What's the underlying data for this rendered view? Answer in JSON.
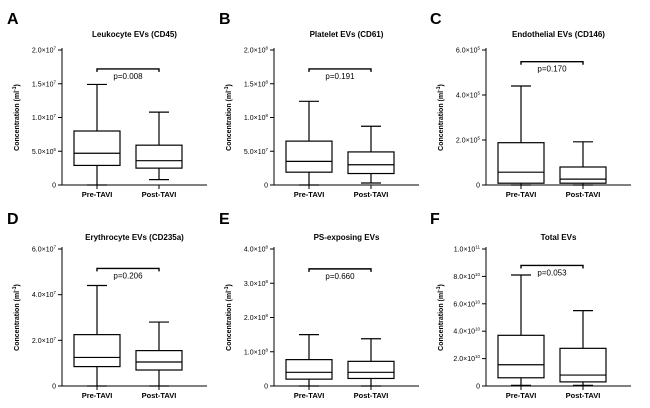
{
  "chart_data": [
    {
      "letter": "A",
      "type": "box",
      "title": "Leukocyte EVs (CD45)",
      "ylabel": "Concentration (ml",
      "ylabel_sup": "-1",
      "ylabel_end": ")",
      "ylim": [
        0,
        20000000
      ],
      "yticks": [
        {
          "value": 0,
          "mant": "0",
          "exp": ""
        },
        {
          "value": 5000000,
          "mant": "5.0×10",
          "exp": "6"
        },
        {
          "value": 10000000,
          "mant": "1.0×10",
          "exp": "7"
        },
        {
          "value": 15000000,
          "mant": "1.5×10",
          "exp": "7"
        },
        {
          "value": 20000000,
          "mant": "2.0×10",
          "exp": "7"
        }
      ],
      "categories": [
        "Pre-TAVI",
        "Post-TAVI"
      ],
      "boxes": [
        {
          "min": 0,
          "q1": 2900000,
          "median": 4700000,
          "q3": 8000000,
          "max": 14900000
        },
        {
          "min": 800000,
          "q1": 2500000,
          "median": 3600000,
          "q3": 5900000,
          "max": 10800000
        }
      ],
      "comparison": {
        "pvalue": "p=0.008",
        "level": 17200000
      }
    },
    {
      "letter": "B",
      "type": "box",
      "title": "Platelet EVs (CD61)",
      "ylabel": "Concentration (ml",
      "ylabel_sup": "-1",
      "ylabel_end": ")",
      "ylim": [
        0,
        200000000
      ],
      "yticks": [
        {
          "value": 0,
          "mant": "0",
          "exp": ""
        },
        {
          "value": 50000000,
          "mant": "5.0×10",
          "exp": "7"
        },
        {
          "value": 100000000,
          "mant": "1.0×10",
          "exp": "8"
        },
        {
          "value": 150000000,
          "mant": "1.5×10",
          "exp": "8"
        },
        {
          "value": 200000000,
          "mant": "2.0×10",
          "exp": "8"
        }
      ],
      "categories": [
        "Pre-TAVI",
        "Post-TAVI"
      ],
      "boxes": [
        {
          "min": 0,
          "q1": 19000000,
          "median": 35000000,
          "q3": 65000000,
          "max": 124000000
        },
        {
          "min": 3000000,
          "q1": 17000000,
          "median": 30000000,
          "q3": 49000000,
          "max": 87000000
        }
      ],
      "comparison": {
        "pvalue": "p=0.191",
        "level": 172000000
      }
    },
    {
      "letter": "C",
      "type": "box",
      "title": "Endothelial EVs (CD146)",
      "ylabel": "Concentration (ml",
      "ylabel_sup": "-1",
      "ylabel_end": ")",
      "ylim": [
        0,
        600000
      ],
      "yticks": [
        {
          "value": 0,
          "mant": "0",
          "exp": ""
        },
        {
          "value": 200000,
          "mant": "2.0×10",
          "exp": "5"
        },
        {
          "value": 400000,
          "mant": "4.0×10",
          "exp": "5"
        },
        {
          "value": 600000,
          "mant": "6.0×10",
          "exp": "5"
        }
      ],
      "categories": [
        "Pre-TAVI",
        "Post-TAVI"
      ],
      "boxes": [
        {
          "min": 0,
          "q1": 8000,
          "median": 57000,
          "q3": 188000,
          "max": 440000
        },
        {
          "min": 0,
          "q1": 8000,
          "median": 26000,
          "q3": 80000,
          "max": 192000
        }
      ],
      "comparison": {
        "pvalue": "p=0.170",
        "level": 548000
      }
    },
    {
      "letter": "D",
      "type": "box",
      "title": "Erythrocyte EVs (CD235a)",
      "ylabel": "Concentration (ml",
      "ylabel_sup": "-1",
      "ylabel_end": ")",
      "ylim": [
        0,
        60000000
      ],
      "yticks": [
        {
          "value": 0,
          "mant": "0",
          "exp": ""
        },
        {
          "value": 20000000,
          "mant": "2.0×10",
          "exp": "7"
        },
        {
          "value": 40000000,
          "mant": "4.0×10",
          "exp": "7"
        },
        {
          "value": 60000000,
          "mant": "6.0×10",
          "exp": "7"
        }
      ],
      "categories": [
        "Pre-TAVI",
        "Post-TAVI"
      ],
      "boxes": [
        {
          "min": 0,
          "q1": 8500000,
          "median": 12500000,
          "q3": 22500000,
          "max": 44000000
        },
        {
          "min": 0,
          "q1": 7000000,
          "median": 10500000,
          "q3": 15500000,
          "max": 28000000
        }
      ],
      "comparison": {
        "pvalue": "p=0.206",
        "level": 51500000
      }
    },
    {
      "letter": "E",
      "type": "box",
      "title": "PS-exposing EVs",
      "ylabel": "Concentration (ml",
      "ylabel_sup": "-1",
      "ylabel_end": ")",
      "ylim": [
        0,
        400000000
      ],
      "yticks": [
        {
          "value": 0,
          "mant": "0",
          "exp": ""
        },
        {
          "value": 100000000,
          "mant": "1.0×10",
          "exp": "8"
        },
        {
          "value": 200000000,
          "mant": "2.0×10",
          "exp": "8"
        },
        {
          "value": 300000000,
          "mant": "3.0×10",
          "exp": "8"
        },
        {
          "value": 400000000,
          "mant": "4.0×10",
          "exp": "8"
        }
      ],
      "categories": [
        "Pre-TAVI",
        "Post-TAVI"
      ],
      "boxes": [
        {
          "min": 0,
          "q1": 20000000,
          "median": 40000000,
          "q3": 77000000,
          "max": 150000000
        },
        {
          "min": 0,
          "q1": 22000000,
          "median": 40000000,
          "q3": 72000000,
          "max": 138000000
        }
      ],
      "comparison": {
        "pvalue": "p=0.660",
        "level": 342000000
      }
    },
    {
      "letter": "F",
      "type": "box",
      "title": "Total EVs",
      "ylabel": "Concentration (ml",
      "ylabel_sup": "-1",
      "ylabel_end": ")",
      "ylim": [
        0,
        100000000000
      ],
      "yticks": [
        {
          "value": 0,
          "mant": "0",
          "exp": ""
        },
        {
          "value": 20000000000,
          "mant": "2.0×10",
          "exp": "10"
        },
        {
          "value": 40000000000,
          "mant": "4.0×10",
          "exp": "10"
        },
        {
          "value": 60000000000,
          "mant": "6.0×10",
          "exp": "10"
        },
        {
          "value": 80000000000,
          "mant": "8.0×10",
          "exp": "10"
        },
        {
          "value": 100000000000,
          "mant": "1.0×10",
          "exp": "11"
        }
      ],
      "categories": [
        "Pre-TAVI",
        "Post-TAVI"
      ],
      "boxes": [
        {
          "min": 500000000,
          "q1": 6000000000,
          "median": 15500000000,
          "q3": 37000000000,
          "max": 81000000000
        },
        {
          "min": 500000000,
          "q1": 3000000000,
          "median": 8000000000,
          "q3": 27500000000,
          "max": 55000000000
        }
      ],
      "comparison": {
        "pvalue": "p=0.053",
        "level": 88000000000
      }
    }
  ]
}
